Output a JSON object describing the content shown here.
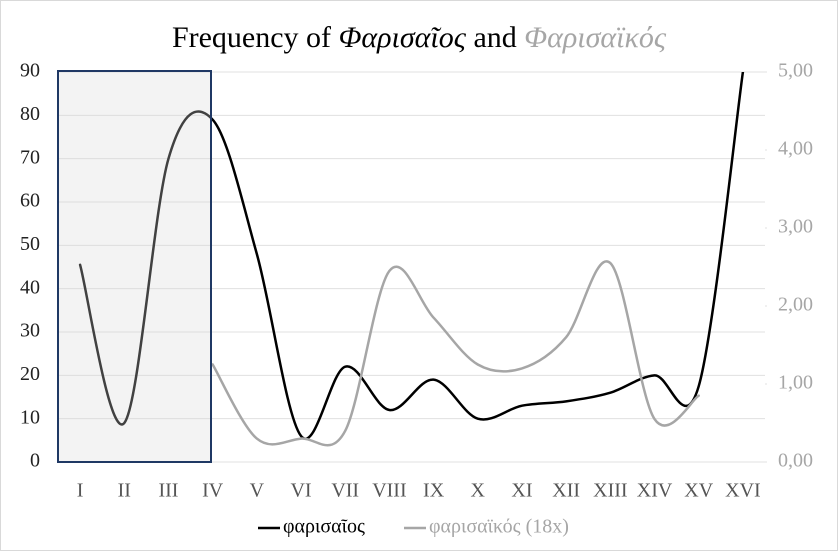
{
  "chart_data": {
    "type": "line",
    "title": [
      "Frequency of",
      "Φαρισαῖος",
      "and",
      "Φαρισαϊκός"
    ],
    "categories": [
      "I",
      "II",
      "III",
      "IV",
      "V",
      "VI",
      "VII",
      "VIII",
      "IX",
      "X",
      "XI",
      "XII",
      "XIII",
      "XIV",
      "XV",
      "XVI"
    ],
    "series": [
      {
        "name": "φαρισαῖος",
        "color": "#000000",
        "values": [
          45.5,
          9,
          70,
          79,
          48,
          6,
          22,
          12,
          19,
          10,
          13,
          14,
          16,
          20,
          17.5,
          90
        ]
      },
      {
        "name": "φαρισαϊκός (18x)",
        "color": "#a6a6a6",
        "axis": "y2",
        "values": [
          null,
          null,
          null,
          1.25,
          0.3,
          0.3,
          0.4,
          2.45,
          1.85,
          1.25,
          1.2,
          1.6,
          2.55,
          0.55,
          0.85,
          null
        ]
      }
    ],
    "ylim": [
      0,
      90
    ],
    "yticks": [
      0,
      10,
      20,
      30,
      40,
      50,
      60,
      70,
      80,
      90
    ],
    "y2lim": [
      0,
      5
    ],
    "y2ticks": [
      {
        "value": 0,
        "label": "0,00"
      },
      {
        "value": 1,
        "label": "1,00"
      },
      {
        "value": 2,
        "label": "2,00"
      },
      {
        "value": 3,
        "label": "3,00"
      },
      {
        "value": 4,
        "label": "4,00"
      },
      {
        "value": 5,
        "label": "5,00"
      }
    ],
    "grid": true,
    "legend": "bottom"
  }
}
